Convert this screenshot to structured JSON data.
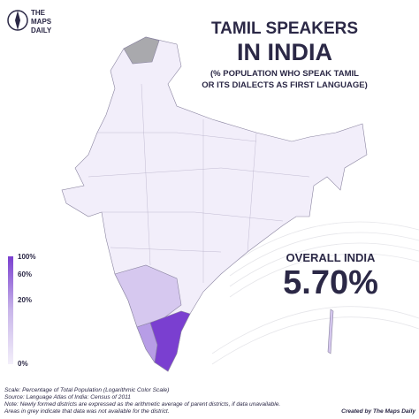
{
  "brand": [
    "THE",
    "MAPS",
    "DAILY"
  ],
  "title": {
    "line1": "TAMIL SPEAKERS",
    "line2": "IN INDIA",
    "subtitle": [
      "(% POPULATION WHO SPEAK TAMIL",
      "OR ITS DIALECTS AS FIRST LANGUAGE)"
    ]
  },
  "legend": {
    "labels": [
      "100%",
      "60%",
      "20%",
      "0%"
    ]
  },
  "overall": {
    "label": "OVERALL INDIA",
    "value": "5.70%"
  },
  "notes": [
    "Scale: Percentage of Total Population (Logarithmic Color Scale)",
    "Source: Language Atlas of India: Census of 2011",
    "Note: Newly formed districts are expressed as the arithmetic average of parent districts, if data unavailable.",
    "Areas in grey indicate that data was not available for the district."
  ],
  "credit": "Created by The Maps Daily"
}
